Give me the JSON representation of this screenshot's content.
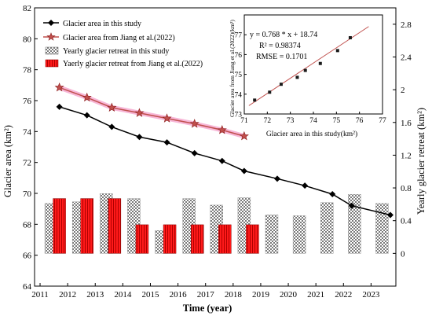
{
  "chart_data": [
    {
      "type": "bar+line",
      "title": "",
      "xlabel": "Time (year)",
      "ylabel": "Glacier area (km²)",
      "y2label": "Yearly glacier retreat (km²)",
      "xlim": [
        2010.8,
        2023.9
      ],
      "ylim": [
        64,
        82
      ],
      "y2lim": [
        -0.4,
        3.0
      ],
      "x_ticks": [
        2011,
        2012,
        2013,
        2014,
        2015,
        2016,
        2017,
        2018,
        2019,
        2020,
        2021,
        2022,
        2023
      ],
      "y_ticks": [
        64,
        66,
        68,
        70,
        72,
        74,
        76,
        78,
        80,
        82
      ],
      "y2_ticks": [
        0,
        0.4,
        0.8,
        1.2,
        1.6,
        2.0,
        2.4,
        2.8
      ],
      "y2_tick_labels": [
        "0",
        "0.4",
        "0.8",
        "1.2",
        "1.6",
        "2",
        "2.4",
        "2.8"
      ],
      "series": [
        {
          "name": "Glacier area in this study",
          "kind": "line",
          "color": "#000000",
          "marker": "diamond",
          "x": [
            2011.7,
            2012.7,
            2013.6,
            2014.6,
            2015.6,
            2016.6,
            2017.6,
            2018.4,
            2019.6,
            2020.6,
            2021.6,
            2022.3,
            2023.7
          ],
          "values": [
            75.6,
            75.05,
            74.3,
            73.65,
            73.3,
            72.6,
            72.1,
            71.45,
            70.95,
            70.5,
            69.95,
            69.2,
            68.6
          ]
        },
        {
          "name": "Glacier area from Jiang et al.(2022)",
          "kind": "line",
          "color": "#c0504d",
          "marker": "star",
          "x": [
            2011.7,
            2012.7,
            2013.6,
            2014.6,
            2015.6,
            2016.6,
            2017.6,
            2018.4
          ],
          "values": [
            76.85,
            76.2,
            75.55,
            75.2,
            74.85,
            74.5,
            74.1,
            73.7
          ]
        },
        {
          "name": "Yearly glacier retreat in this study",
          "kind": "bar",
          "pattern": "checker",
          "x": [
            2011.4,
            2012.4,
            2013.4,
            2014.4,
            2015.4,
            2016.4,
            2017.4,
            2018.4,
            2019.4,
            2020.4,
            2021.4,
            2022.4,
            2023.4
          ],
          "values": [
            0.61,
            0.63,
            0.73,
            0.67,
            0.28,
            0.67,
            0.59,
            0.68,
            0.47,
            0.46,
            0.62,
            0.72,
            0.61
          ]
        },
        {
          "name": "Yaerly glacier retreat from Jiang et al.(2022)",
          "kind": "bar",
          "color": "#ff1a1a",
          "x": [
            2011.7,
            2012.7,
            2013.7,
            2014.7,
            2015.7,
            2016.7,
            2017.7,
            2018.7
          ],
          "values": [
            0.67,
            0.67,
            0.67,
            0.35,
            0.35,
            0.35,
            0.35,
            0.35
          ]
        }
      ],
      "legend_position": "top-left"
    },
    {
      "type": "scatter",
      "xlabel": "Glacier area in this study(km²)",
      "ylabel": "Glacier area from Jiang et al.(2022)(km²)",
      "xlim": [
        71,
        77
      ],
      "ylim": [
        73,
        78
      ],
      "x_ticks": [
        71,
        72,
        73,
        74,
        75,
        76,
        77
      ],
      "y_ticks": [
        73,
        74,
        75,
        76,
        77
      ],
      "x": [
        71.45,
        72.1,
        72.6,
        73.3,
        73.65,
        74.3,
        75.05,
        75.6
      ],
      "values": [
        73.7,
        74.1,
        74.5,
        74.85,
        75.2,
        75.55,
        76.2,
        76.85
      ],
      "fit_line": {
        "slope": 0.768,
        "intercept": 18.74,
        "color": "#c0504d"
      },
      "annotations": [
        "y = 0.768 * x + 18.74",
        "R² = 0.98374",
        "RMSE = 0.1701"
      ]
    }
  ]
}
